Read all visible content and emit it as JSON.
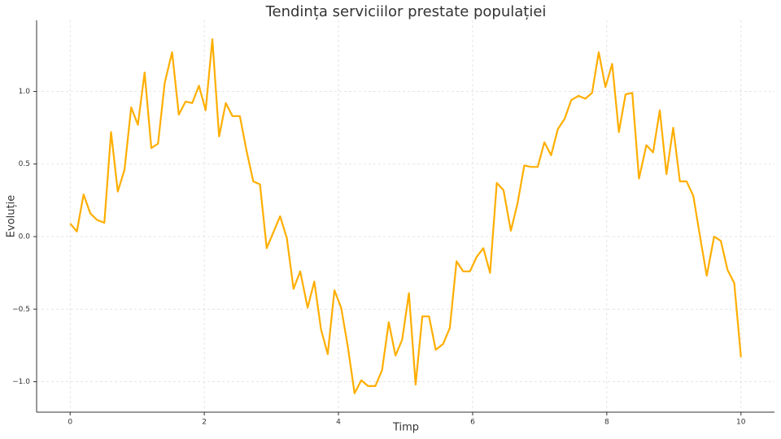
{
  "chart_data": {
    "type": "line",
    "title": "Tendința serviciilor prestate populației",
    "xlabel": "Timp",
    "ylabel": "Evoluție",
    "x": [
      0,
      0.1,
      0.2,
      0.3,
      0.4,
      0.51,
      0.61,
      0.71,
      0.81,
      0.91,
      1.01,
      1.11,
      1.21,
      1.31,
      1.41,
      1.52,
      1.62,
      1.72,
      1.82,
      1.92,
      2.02,
      2.12,
      2.22,
      2.32,
      2.42,
      2.53,
      2.63,
      2.73,
      2.83,
      2.93,
      3.03,
      3.13,
      3.23,
      3.33,
      3.43,
      3.54,
      3.64,
      3.74,
      3.84,
      3.94,
      4.04,
      4.14,
      4.24,
      4.34,
      4.44,
      4.55,
      4.65,
      4.75,
      4.85,
      4.95,
      5.05,
      5.15,
      5.25,
      5.35,
      5.45,
      5.56,
      5.66,
      5.76,
      5.86,
      5.96,
      6.06,
      6.16,
      6.26,
      6.36,
      6.46,
      6.57,
      6.67,
      6.77,
      6.87,
      6.97,
      7.07,
      7.17,
      7.27,
      7.37,
      7.47,
      7.58,
      7.68,
      7.78,
      7.88,
      7.98,
      8.08,
      8.18,
      8.28,
      8.38,
      8.48,
      8.59,
      8.69,
      8.79,
      8.89,
      8.99,
      9.09,
      9.19,
      9.29,
      9.39,
      9.49,
      9.6,
      9.7,
      9.8,
      9.9,
      10
    ],
    "values": [
      0.09,
      0.035,
      0.29,
      0.16,
      0.115,
      0.095,
      0.72,
      0.31,
      0.46,
      0.89,
      0.77,
      1.13,
      0.61,
      0.64,
      1.06,
      1.27,
      0.84,
      0.93,
      0.92,
      1.04,
      0.87,
      1.36,
      0.69,
      0.92,
      0.83,
      0.83,
      0.59,
      0.38,
      0.36,
      -0.08,
      0.03,
      0.14,
      -0.01,
      -0.36,
      -0.24,
      -0.49,
      -0.31,
      -0.64,
      -0.81,
      -0.37,
      -0.49,
      -0.76,
      -1.08,
      -0.99,
      -1.03,
      -1.03,
      -0.92,
      -0.59,
      -0.82,
      -0.71,
      -0.39,
      -1.02,
      -0.55,
      -0.55,
      -0.78,
      -0.74,
      -0.63,
      -0.17,
      -0.24,
      -0.24,
      -0.14,
      -0.08,
      -0.25,
      0.37,
      0.32,
      0.04,
      0.23,
      0.49,
      0.48,
      0.48,
      0.65,
      0.56,
      0.74,
      0.81,
      0.94,
      0.97,
      0.95,
      0.99,
      1.27,
      1.03,
      1.19,
      0.72,
      0.98,
      0.99,
      0.4,
      0.63,
      0.58,
      0.87,
      0.43,
      0.75,
      0.38,
      0.38,
      0.28,
      0.0,
      -0.27,
      0.0,
      -0.03,
      -0.23,
      -0.32,
      -0.83
    ],
    "color": "#ffae00",
    "xlim": [
      -0.5,
      10.5
    ],
    "ylim": [
      -1.21,
      1.49
    ],
    "xticks": [
      0,
      2,
      4,
      6,
      8,
      10
    ],
    "yticks": [
      {
        "value": -1,
        "label": "−1.0"
      },
      {
        "value": -0.5,
        "label": "−0.5"
      },
      {
        "value": 0,
        "label": "0.0"
      },
      0.5,
      {
        "value": 1,
        "label": "1.0"
      }
    ],
    "grid": true
  }
}
